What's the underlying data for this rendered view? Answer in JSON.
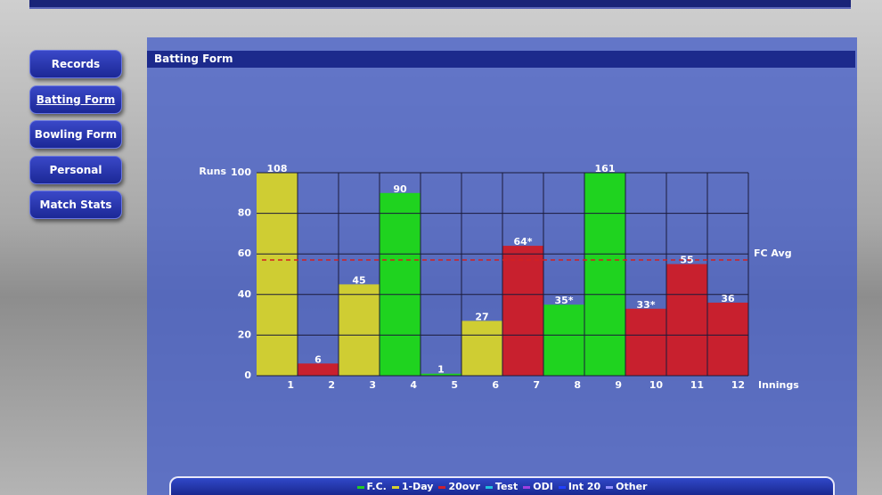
{
  "sidebar": {
    "buttons": [
      "Records",
      "Batting Form",
      "Bowling Form",
      "Personal",
      "Match Stats"
    ]
  },
  "panel": {
    "title": "Batting Form"
  },
  "chart_data": {
    "type": "bar",
    "y_label": "Runs",
    "x_label": "Innings",
    "categories": [
      "1",
      "2",
      "3",
      "4",
      "5",
      "6",
      "7",
      "8",
      "9",
      "10",
      "11",
      "12"
    ],
    "values": [
      108,
      6,
      45,
      90,
      1,
      27,
      64,
      35,
      161,
      33,
      55,
      36
    ],
    "value_labels": [
      "108",
      "6",
      "45",
      "90",
      "1",
      "27",
      "64*",
      "35*",
      "161",
      "33*",
      "55",
      "36"
    ],
    "colors": [
      "#cfcd33",
      "#c8202e",
      "#cfcd33",
      "#1fd31f",
      "#1fd31f",
      "#cfcd33",
      "#c8202e",
      "#1fd31f",
      "#1fd31f",
      "#c8202e",
      "#c8202e",
      "#c8202e"
    ],
    "ylim": [
      0,
      100
    ],
    "yticks": [
      0,
      20,
      40,
      60,
      80,
      100
    ],
    "grid": true,
    "reference_line": {
      "value": 57,
      "label": "FC Avg",
      "color": "#d42020"
    },
    "legend": [
      {
        "name": "F.C.",
        "color": "#22cc22"
      },
      {
        "name": "1-Day",
        "color": "#d8d030"
      },
      {
        "name": "20ovr",
        "color": "#cc2030"
      },
      {
        "name": "Test",
        "color": "#20c0e0"
      },
      {
        "name": "ODI",
        "color": "#a040e0"
      },
      {
        "name": "Int 20",
        "color": "#2040ff"
      },
      {
        "name": "Other",
        "color": "#9090ff"
      }
    ]
  }
}
